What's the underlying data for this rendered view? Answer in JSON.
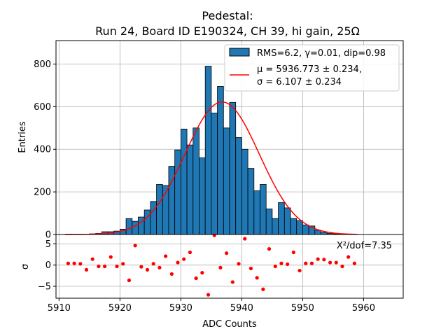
{
  "chart_data": [
    {
      "type": "bar",
      "title": "Pedestal:",
      "subtitle": "Run 24, Board ID E190324, CH 39, hi gain, 25Ω",
      "xlabel": "",
      "ylabel": "Entries",
      "xlim": [
        5909.5,
        5966.5
      ],
      "ylim": [
        0,
        910
      ],
      "yticks": [
        0,
        200,
        400,
        600,
        800
      ],
      "grid": true,
      "bin_start": 5911,
      "bin_width": 1,
      "values": [
        1,
        1,
        1,
        1,
        3,
        5,
        13,
        13,
        16,
        25,
        75,
        62,
        82,
        115,
        155,
        235,
        230,
        320,
        397,
        495,
        420,
        500,
        360,
        790,
        570,
        695,
        500,
        620,
        455,
        400,
        310,
        205,
        235,
        120,
        75,
        150,
        125,
        75,
        65,
        45,
        40,
        20,
        10,
        5,
        3,
        2,
        1,
        1
      ],
      "legend": {
        "position": "top-right",
        "hist_label": "RMS=6.2, γ=0.01, dip=0.98",
        "fit_label_1": "μ = 5936.773 ± 0.234,",
        "fit_label_2": "σ = 6.107 ± 0.234"
      },
      "fit": {
        "mu": 5936.773,
        "sigma": 6.107,
        "peak": 622,
        "color": "#ff0000"
      },
      "bar_color": "#1f77b4"
    },
    {
      "type": "scatter",
      "xlabel": "ADC Counts",
      "ylabel": "σ",
      "xlim": [
        5909.5,
        5966.5
      ],
      "ylim": [
        -7.8,
        7.2
      ],
      "xticks": [
        5910,
        5920,
        5930,
        5940,
        5950,
        5960
      ],
      "yticks": [
        -5,
        0,
        5
      ],
      "grid": true,
      "annotation": "X²/dof=7.35",
      "marker_color": "#ff0000",
      "x": [
        5911.5,
        5912.5,
        5913.5,
        5914.5,
        5915.5,
        5916.5,
        5917.5,
        5918.5,
        5919.5,
        5920.5,
        5921.5,
        5922.5,
        5923.5,
        5924.5,
        5925.5,
        5926.5,
        5927.5,
        5928.5,
        5929.5,
        5930.5,
        5931.5,
        5932.5,
        5933.5,
        5934.5,
        5935.5,
        5936.5,
        5937.5,
        5938.5,
        5939.5,
        5940.5,
        5941.5,
        5942.5,
        5943.5,
        5944.5,
        5945.5,
        5946.5,
        5947.5,
        5948.5,
        5949.5,
        5950.5,
        5951.5,
        5952.5,
        5953.5,
        5954.5,
        5955.5,
        5956.5,
        5957.5,
        5958.5
      ],
      "y": [
        0.4,
        0.4,
        0.3,
        -1.1,
        1.4,
        -0.3,
        -0.3,
        1.9,
        -0.3,
        0.3,
        -3.6,
        4.6,
        -0.4,
        -1.1,
        0.3,
        -0.6,
        2.1,
        -2.1,
        0.6,
        1.4,
        3.0,
        -3.1,
        -1.8,
        -7.0,
        7.0,
        -0.6,
        2.8,
        -4.0,
        0.3,
        6.2,
        -0.8,
        -3.0,
        -5.7,
        3.8,
        -0.3,
        0.4,
        0.2,
        3.0,
        -1.3,
        0.4,
        0.4,
        1.4,
        1.3,
        0.6,
        0.6,
        -0.3,
        1.9,
        0.4
      ]
    }
  ]
}
